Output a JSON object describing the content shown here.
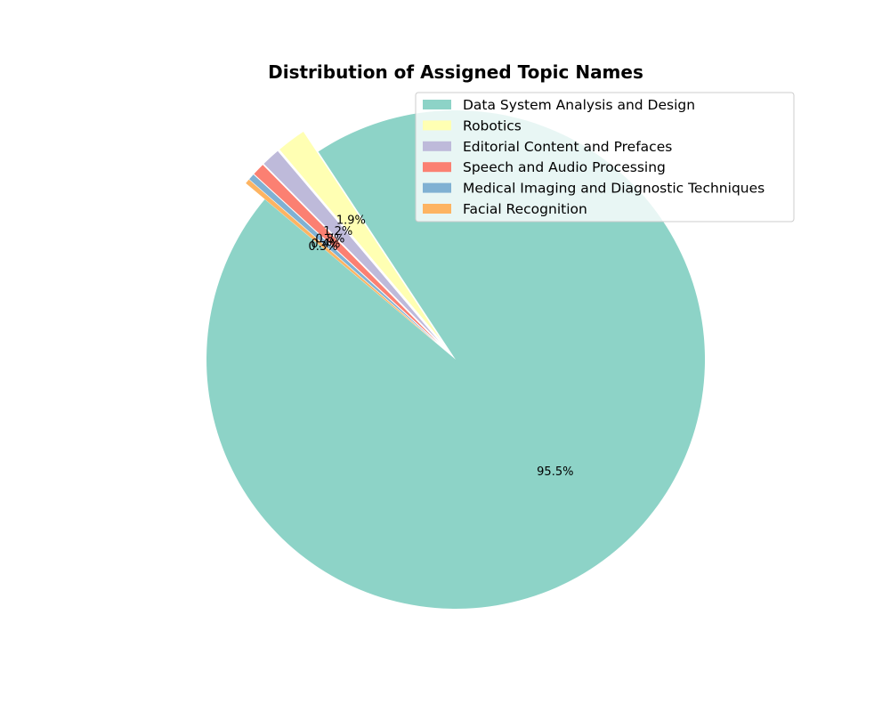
{
  "chart_data": {
    "type": "pie",
    "title": "Distribution of Assigned Topic Names",
    "legend_position": "top-right",
    "start_angle_deg": 140,
    "direction": "counterclockwise",
    "slices": [
      {
        "label": "Data System Analysis and Design",
        "value": 95.5,
        "pct_label": "95.5%",
        "color": "#8dd3c7",
        "explode": 0
      },
      {
        "label": "Robotics",
        "value": 1.9,
        "pct_label": "1.9%",
        "color": "#ffffb3",
        "explode": 0.1
      },
      {
        "label": "Editorial Content and Prefaces",
        "value": 1.2,
        "pct_label": "1.2%",
        "color": "#bebada",
        "explode": 0.1
      },
      {
        "label": "Speech and Audio Processing",
        "value": 0.8,
        "pct_label": "0.8%",
        "color": "#fb8072",
        "explode": 0.1
      },
      {
        "label": "Medical Imaging and Diagnostic Techniques",
        "value": 0.4,
        "pct_label": "0.4%",
        "color": "#80b1d3",
        "explode": 0.1
      },
      {
        "label": "Facial Recognition",
        "value": 0.3,
        "pct_label": "0.3%",
        "color": "#fdb462",
        "explode": 0.1
      }
    ]
  }
}
